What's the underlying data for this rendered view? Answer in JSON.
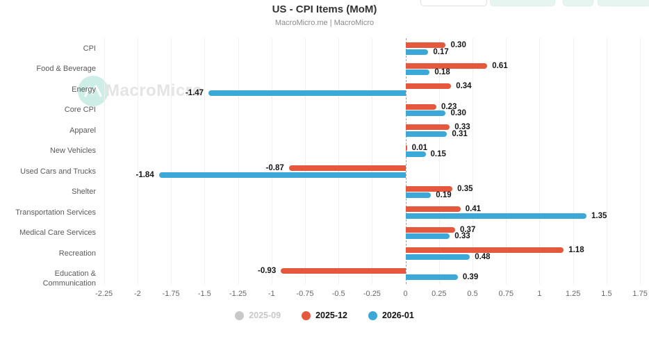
{
  "header": {
    "title": "US - CPI Items (MoM)",
    "subtitle": "MacroMicro.me | MacroMicro"
  },
  "watermark": {
    "text": "MacroMicro"
  },
  "toolbar": {
    "buttons": [
      {
        "variant": "outline"
      },
      {
        "variant": "mint"
      },
      {
        "variant": "mint"
      },
      {
        "variant": "mint"
      }
    ]
  },
  "colors": {
    "red": "#e5583e",
    "blue": "#3ba8d8",
    "inactive": "#c8c8c8",
    "gridline": "#efefef",
    "zero_line": "#9e9e9e",
    "mint_button": "#e7f5f1"
  },
  "chart_data": {
    "type": "bar",
    "orientation": "horizontal",
    "title": "US - CPI Items (MoM)",
    "subtitle": "MacroMicro.me | MacroMicro",
    "categories": [
      "CPI",
      "Food & Beverage",
      "Energy",
      "Core CPI",
      "Apparel",
      "New Vehicles",
      "Used Cars and Trucks",
      "Shelter",
      "Transportation Services",
      "Medical Care Services",
      "Recreation",
      "Education & Communication"
    ],
    "series": [
      {
        "name": "2025-09",
        "color": "#c8c8c8",
        "active": false,
        "values": null
      },
      {
        "name": "2025-12",
        "color": "#e5583e",
        "active": true,
        "values": [
          0.3,
          0.61,
          0.34,
          0.23,
          0.33,
          0.01,
          -0.87,
          0.35,
          0.41,
          0.37,
          1.18,
          -0.93
        ]
      },
      {
        "name": "2026-01",
        "color": "#3ba8d8",
        "active": true,
        "values": [
          0.17,
          0.18,
          -1.47,
          0.3,
          0.31,
          0.15,
          -1.84,
          0.19,
          1.35,
          0.33,
          0.48,
          0.39
        ]
      }
    ],
    "value_labels": true,
    "xlim": [
      -2.3,
      1.77
    ],
    "xtick_labels": [
      "-2.25",
      "-2",
      "-1.75",
      "-1.5",
      "-1.25",
      "-1",
      "-0.75",
      "-0.5",
      "-0.25",
      "0",
      "0.25",
      "0.5",
      "0.75",
      "1",
      "1.25",
      "1.5",
      "1.75"
    ],
    "grid": true,
    "legend_position": "bottom"
  }
}
